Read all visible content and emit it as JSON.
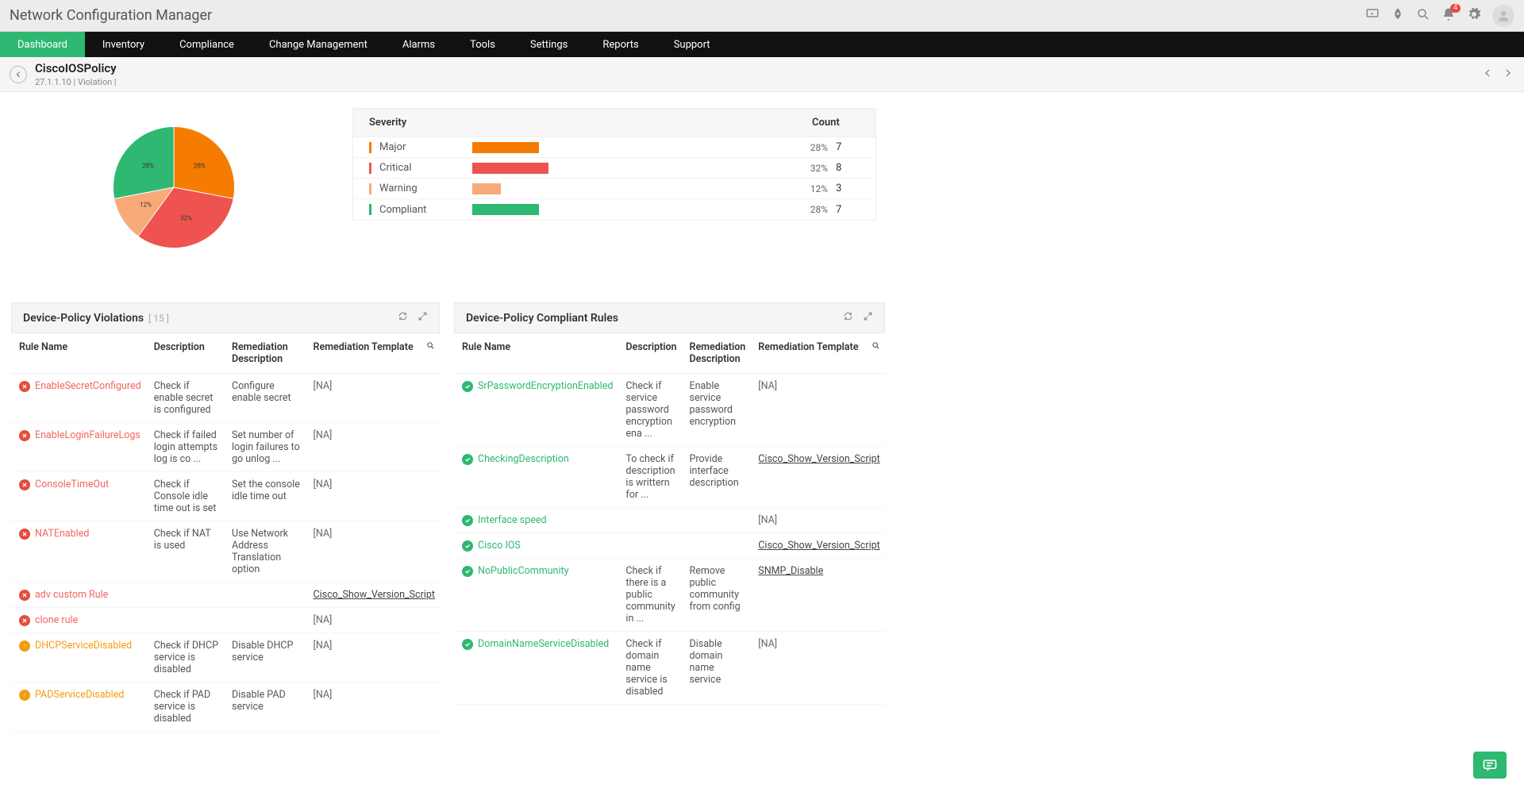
{
  "app_title": "Network Configuration Manager",
  "notification_count": "4",
  "nav": [
    "Dashboard",
    "Inventory",
    "Compliance",
    "Change Management",
    "Alarms",
    "Tools",
    "Settings",
    "Reports",
    "Support"
  ],
  "nav_active": 0,
  "header": {
    "title": "CiscoIOSPolicy",
    "sub": "27.1.1.10 | Violation |"
  },
  "pie": {
    "slices": [
      {
        "label": "Major",
        "pct": 28,
        "color": "#f57c00",
        "text": "28%"
      },
      {
        "label": "Critical",
        "pct": 32,
        "color": "#ef5350",
        "text": "32%"
      },
      {
        "label": "Warning",
        "pct": 12,
        "color": "#f8a978",
        "text": "12%"
      },
      {
        "label": "Compliant",
        "pct": 28,
        "color": "#2eb872",
        "text": "28%"
      }
    ],
    "label_fontsize": 9
  },
  "severity": {
    "head_label": "Severity",
    "head_count": "Count",
    "bar_max_width": 280,
    "rows": [
      {
        "label": "Major",
        "color": "#f57c00",
        "pct": "28%",
        "count": "7",
        "bar": 84
      },
      {
        "label": "Critical",
        "color": "#ef5350",
        "pct": "32%",
        "count": "8",
        "bar": 96
      },
      {
        "label": "Warning",
        "color": "#f8a978",
        "pct": "12%",
        "count": "3",
        "bar": 36
      },
      {
        "label": "Compliant",
        "color": "#2eb872",
        "pct": "28%",
        "count": "7",
        "bar": 84
      }
    ]
  },
  "violations": {
    "title": "Device-Policy Violations",
    "count": "[ 15 ]",
    "cols": [
      "Rule Name",
      "Description",
      "Remediation Description",
      "Remediation Template"
    ],
    "rows": [
      {
        "status": "err",
        "name": "EnableSecretConfigured",
        "desc": "Check if enable secret is configured",
        "rem": "Configure enable secret",
        "tmpl": "[NA]"
      },
      {
        "status": "err",
        "name": "EnableLoginFailureLogs",
        "desc": "Check if failed login attempts log is co ...",
        "rem": "Set number of login failures to go unlog ...",
        "tmpl": "[NA]"
      },
      {
        "status": "err",
        "name": "ConsoleTimeOut",
        "desc": "Check if Console idle time out is set",
        "rem": "Set the console idle time out",
        "tmpl": "[NA]"
      },
      {
        "status": "err",
        "name": "NATEnabled",
        "desc": "Check if NAT is used",
        "rem": "Use Network Address Translation option",
        "tmpl": "[NA]"
      },
      {
        "status": "err",
        "name": "adv custom Rule",
        "desc": "",
        "rem": "",
        "tmpl": "Cisco_Show_Version_Script",
        "link": true
      },
      {
        "status": "err",
        "name": "clone rule",
        "desc": "",
        "rem": "",
        "tmpl": "[NA]"
      },
      {
        "status": "warn",
        "name": "DHCPServiceDisabled",
        "desc": "Check if DHCP service is disabled",
        "rem": "Disable DHCP service",
        "tmpl": "[NA]"
      },
      {
        "status": "warn",
        "name": "PADServiceDisabled",
        "desc": "Check if PAD service is disabled",
        "rem": "Disable PAD service",
        "tmpl": "[NA]"
      }
    ]
  },
  "compliant": {
    "title": "Device-Policy Compliant Rules",
    "cols": [
      "Rule Name",
      "Description",
      "Remediation Description",
      "Remediation Template"
    ],
    "rows": [
      {
        "status": "ok",
        "name": "SrPasswordEncryptionEnabled",
        "desc": "Check if service password encryption ena ...",
        "rem": "Enable service password encryption",
        "tmpl": "[NA]"
      },
      {
        "status": "ok",
        "name": "CheckingDescription",
        "desc": "To check if description is writtern for ...",
        "rem": "Provide interface description",
        "tmpl": "Cisco_Show_Version_Script",
        "link": true
      },
      {
        "status": "ok",
        "name": "Interface speed",
        "desc": "",
        "rem": "",
        "tmpl": "[NA]"
      },
      {
        "status": "ok",
        "name": "Cisco IOS",
        "desc": "",
        "rem": "",
        "tmpl": "Cisco_Show_Version_Script",
        "link": true
      },
      {
        "status": "ok",
        "name": "NoPublicCommunity",
        "desc": "Check if there is a public community in ...",
        "rem": "Remove public community from config",
        "tmpl": "SNMP_Disable",
        "link": true
      },
      {
        "status": "ok",
        "name": "DomainNameServiceDisabled",
        "desc": "Check if domain name service is disabled",
        "rem": "Disable domain name service",
        "tmpl": "[NA]"
      }
    ]
  }
}
